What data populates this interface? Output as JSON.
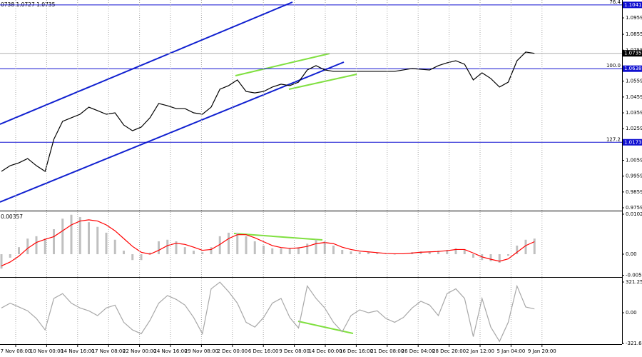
{
  "chart_data": [
    {
      "type": "line",
      "text": "0738 1.0727 1.0735",
      "ylim": [
        0.9741,
        1.1072
      ],
      "yticks": [
        1.0959,
        1.0855,
        1.0755,
        1.0559,
        1.0459,
        1.0359,
        1.0259,
        1.0059,
        0.9959,
        0.9859,
        0.9759
      ],
      "levels": [
        {
          "value": 1.1041,
          "label": "76.4"
        },
        {
          "value": 1.0638,
          "label": "100.0"
        },
        {
          "value": 1.0173,
          "label": "127.2"
        }
      ],
      "level_color": "#1010d0",
      "last_price": 1.0735,
      "series": [
        {
          "color": "#000000",
          "values": [
            0.9989,
            1.0025,
            1.0043,
            1.007,
            1.0025,
            0.9989,
            1.0192,
            1.0305,
            1.0328,
            1.035,
            1.0395,
            1.0373,
            1.035,
            1.0359,
            1.0282,
            1.0246,
            1.0269,
            1.0328,
            1.0418,
            1.0404,
            1.0386,
            1.0386,
            1.0359,
            1.035,
            1.0395,
            1.0508,
            1.0531,
            1.0567,
            1.0494,
            1.0485,
            1.0494,
            1.0522,
            1.054,
            1.0531,
            1.0553,
            1.063,
            1.0657,
            1.063,
            1.0621,
            1.0621,
            1.0621,
            1.0621,
            1.0621,
            1.0621,
            1.0621,
            1.0621,
            1.063,
            1.0639,
            1.0634,
            1.063,
            1.0657,
            1.0675,
            1.0688,
            1.0666,
            1.0567,
            1.0612,
            1.0576,
            1.0522,
            1.0553,
            1.0688,
            1.0743,
            1.0735
          ]
        }
      ]
    },
    {
      "type": "macd",
      "text": "0.00357",
      "ylim": [
        -0.00585,
        0.01079
      ],
      "yticks": [
        0.01024,
        {
          "value": 0,
          "label": "0.00"
        },
        -0.0054
      ],
      "series": [
        {
          "type": "bar",
          "color": "#c0c0c0",
          "values": [
            -0.0037,
            -0.0009,
            0.0018,
            0.004,
            0.0046,
            0.004,
            0.0064,
            0.0091,
            0.0101,
            0.0095,
            0.0082,
            0.007,
            0.0055,
            0.0037,
            0.0009,
            -0.0015,
            -0.0015,
            0.0004,
            0.0033,
            0.0037,
            0.0033,
            0.0018,
            0.0009,
            0.0005,
            0.0018,
            0.0046,
            0.0055,
            0.0055,
            0.0046,
            0.0033,
            0.0022,
            0.0015,
            0.0015,
            0.0015,
            0.0018,
            0.0027,
            0.0037,
            0.0033,
            0.0022,
            0.0011,
            0.0007,
            0.0005,
            0.0005,
            0.0004,
            0.0002,
            0,
            0.0002,
            0.0005,
            0.0007,
            0.0007,
            0.0009,
            0.0011,
            0.0015,
            0.0011,
            -0.0009,
            -0.0015,
            -0.0018,
            -0.0022,
            -0.0004,
            0.0022,
            0.0037,
            0.004
          ]
        },
        {
          "type": "line",
          "color": "#ff0000",
          "values": [
            -0.003,
            -0.002,
            -0.0005,
            0.0015,
            0.003,
            0.0038,
            0.0045,
            0.006,
            0.0075,
            0.0085,
            0.0088,
            0.0085,
            0.0075,
            0.006,
            0.004,
            0.002,
            0.0005,
            0.0,
            0.001,
            0.0022,
            0.0028,
            0.0025,
            0.0018,
            0.001,
            0.0012,
            0.0025,
            0.004,
            0.005,
            0.005,
            0.0042,
            0.0032,
            0.0022,
            0.0017,
            0.0015,
            0.0016,
            0.002,
            0.0027,
            0.003,
            0.0027,
            0.0018,
            0.0012,
            0.0008,
            0.0006,
            0.0004,
            0.0002,
            0.0001,
            0.0001,
            0.0003,
            0.0005,
            0.0006,
            0.0007,
            0.0009,
            0.0012,
            0.0012,
            0.0003,
            -0.0007,
            -0.0013,
            -0.0018,
            -0.0012,
            0.0005,
            0.0022,
            0.0032
          ]
        }
      ]
    },
    {
      "type": "line",
      "ylim": [
        -328.6,
        358.6
      ],
      "yticks": [
        321.2557,
        {
          "value": 0,
          "label": "0.00"
        },
        -321.6054
      ],
      "series": [
        {
          "color": "#a8a8a8",
          "values": [
            50,
            100,
            60,
            20,
            -60,
            -180,
            150,
            200,
            100,
            50,
            20,
            -30,
            50,
            80,
            -100,
            -180,
            -220,
            -80,
            100,
            180,
            140,
            80,
            -50,
            -220,
            250,
            320,
            220,
            100,
            -100,
            -150,
            -50,
            100,
            150,
            -50,
            -160,
            280,
            150,
            50,
            -100,
            -200,
            -30,
            30,
            0,
            20,
            -60,
            -100,
            -50,
            50,
            120,
            80,
            -30,
            200,
            250,
            150,
            -250,
            150,
            -150,
            -300,
            -100,
            280,
            60,
            40
          ]
        }
      ],
      "xticks": [
        "7 Nov 08:00",
        "10 Nov 00:00",
        "14 Nov 16:00",
        "17 Nov 08:00",
        "22 Nov 00:00",
        "24 Nov 16:00",
        "29 Nov 08:00",
        "2 Dec 00:00",
        "6 Dec 16:00",
        "9 Dec 08:00",
        "14 Dec 00:00",
        "16 Dec 16:00",
        "21 Dec 08:00",
        "26 Dec 04:00",
        "28 Dec 20:00",
        "2 Jan 12:00",
        "5 Jan 04:00",
        "9 Jan 20:00"
      ]
    }
  ]
}
